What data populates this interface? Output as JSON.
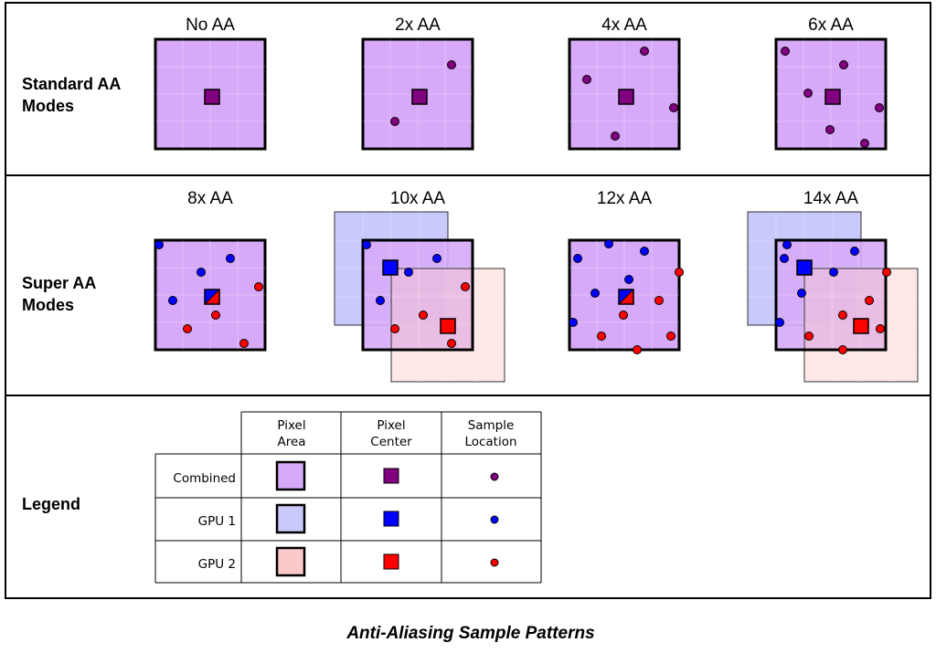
{
  "rows": [
    {
      "label_line1": "Standard AA",
      "label_line2": "Modes",
      "modes": [
        "No AA",
        "2x AA",
        "4x AA",
        "6x AA"
      ]
    },
    {
      "label_line1": "Super AA",
      "label_line2": "Modes",
      "modes": [
        "8x AA",
        "10x AA",
        "12x AA",
        "14x AA"
      ]
    }
  ],
  "legend": {
    "label": "Legend",
    "columns": [
      {
        "line1": "Pixel",
        "line2": "Area"
      },
      {
        "line1": "Pixel",
        "line2": "Center"
      },
      {
        "line1": "Sample",
        "line2": "Location"
      }
    ],
    "rows": [
      "Combined",
      "GPU 1",
      "GPU 2"
    ]
  },
  "caption": "Anti-Aliasing Sample Patterns",
  "colors": {
    "combined_area": "#d6aaf8",
    "gpu1_area": "#c9c9fc",
    "gpu2_area": "#fbc9c9",
    "combined_center": "#800080",
    "gpu1": "#0000ff",
    "gpu2": "#ff0000"
  }
}
